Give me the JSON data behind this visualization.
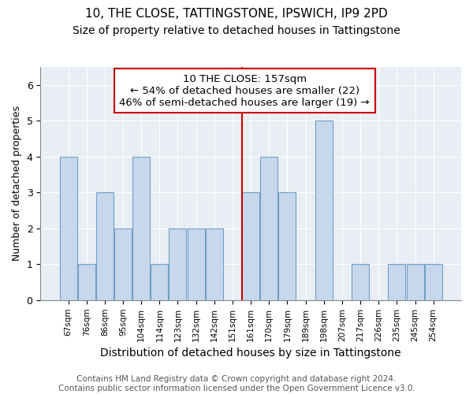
{
  "title": "10, THE CLOSE, TATTINGSTONE, IPSWICH, IP9 2PD",
  "subtitle": "Size of property relative to detached houses in Tattingstone",
  "xlabel": "Distribution of detached houses by size in Tattingstone",
  "ylabel": "Number of detached properties",
  "bar_labels": [
    "67sqm",
    "76sqm",
    "86sqm",
    "95sqm",
    "104sqm",
    "114sqm",
    "123sqm",
    "132sqm",
    "142sqm",
    "151sqm",
    "161sqm",
    "170sqm",
    "179sqm",
    "189sqm",
    "198sqm",
    "207sqm",
    "217sqm",
    "226sqm",
    "235sqm",
    "245sqm",
    "254sqm"
  ],
  "bar_values": [
    4,
    1,
    3,
    2,
    4,
    1,
    2,
    2,
    2,
    0,
    3,
    4,
    3,
    0,
    5,
    0,
    1,
    0,
    1,
    1,
    1
  ],
  "bar_face_color": "#c8d8ec",
  "bar_edge_color": "#6fa0c8",
  "vline_color": "#cc0000",
  "annotation_line1": "10 THE CLOSE: 157sqm",
  "annotation_line2": "← 54% of detached houses are smaller (22)",
  "annotation_line3": "46% of semi-detached houses are larger (19) →",
  "ylim": [
    0,
    6.5
  ],
  "yticks": [
    0,
    1,
    2,
    3,
    4,
    5,
    6
  ],
  "footer_text": "Contains HM Land Registry data © Crown copyright and database right 2024.\nContains public sector information licensed under the Open Government Licence v3.0.",
  "title_fontsize": 11,
  "subtitle_fontsize": 10,
  "xlabel_fontsize": 10,
  "ylabel_fontsize": 9,
  "annotation_fontsize": 9.5,
  "footer_fontsize": 7.5,
  "bg_color": "#e8eef4"
}
